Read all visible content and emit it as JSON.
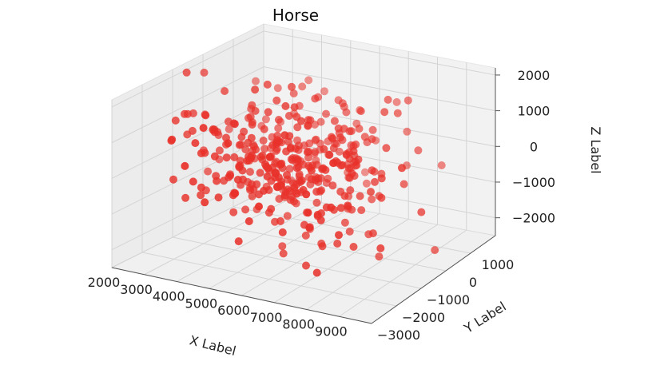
{
  "chart_data": {
    "type": "scatter",
    "projection": "3d",
    "title": "Horse",
    "xlabel": "X Label",
    "ylabel": "Y Label",
    "zlabel": "Z Label",
    "xlim": [
      2000,
      10000
    ],
    "ylim": [
      -3000,
      2000
    ],
    "zlim": [
      -2500,
      2200
    ],
    "x_ticks": [
      2000,
      3000,
      4000,
      5000,
      6000,
      7000,
      8000,
      9000
    ],
    "y_ticks": [
      -3000,
      -2000,
      -1000,
      0,
      1000
    ],
    "z_ticks": [
      -2000,
      -1000,
      0,
      1000,
      2000
    ],
    "x_tick_labels": [
      "2000",
      "3000",
      "4000",
      "5000",
      "6000",
      "7000",
      "8000",
      "9000"
    ],
    "y_tick_labels": [
      "−3000",
      "−2000",
      "−1000",
      "0",
      "1000"
    ],
    "z_tick_labels": [
      "−2000",
      "−1000",
      "0",
      "1000",
      "2000"
    ],
    "grid": true,
    "marker_color": "#e8312a",
    "num_points": 400
  }
}
